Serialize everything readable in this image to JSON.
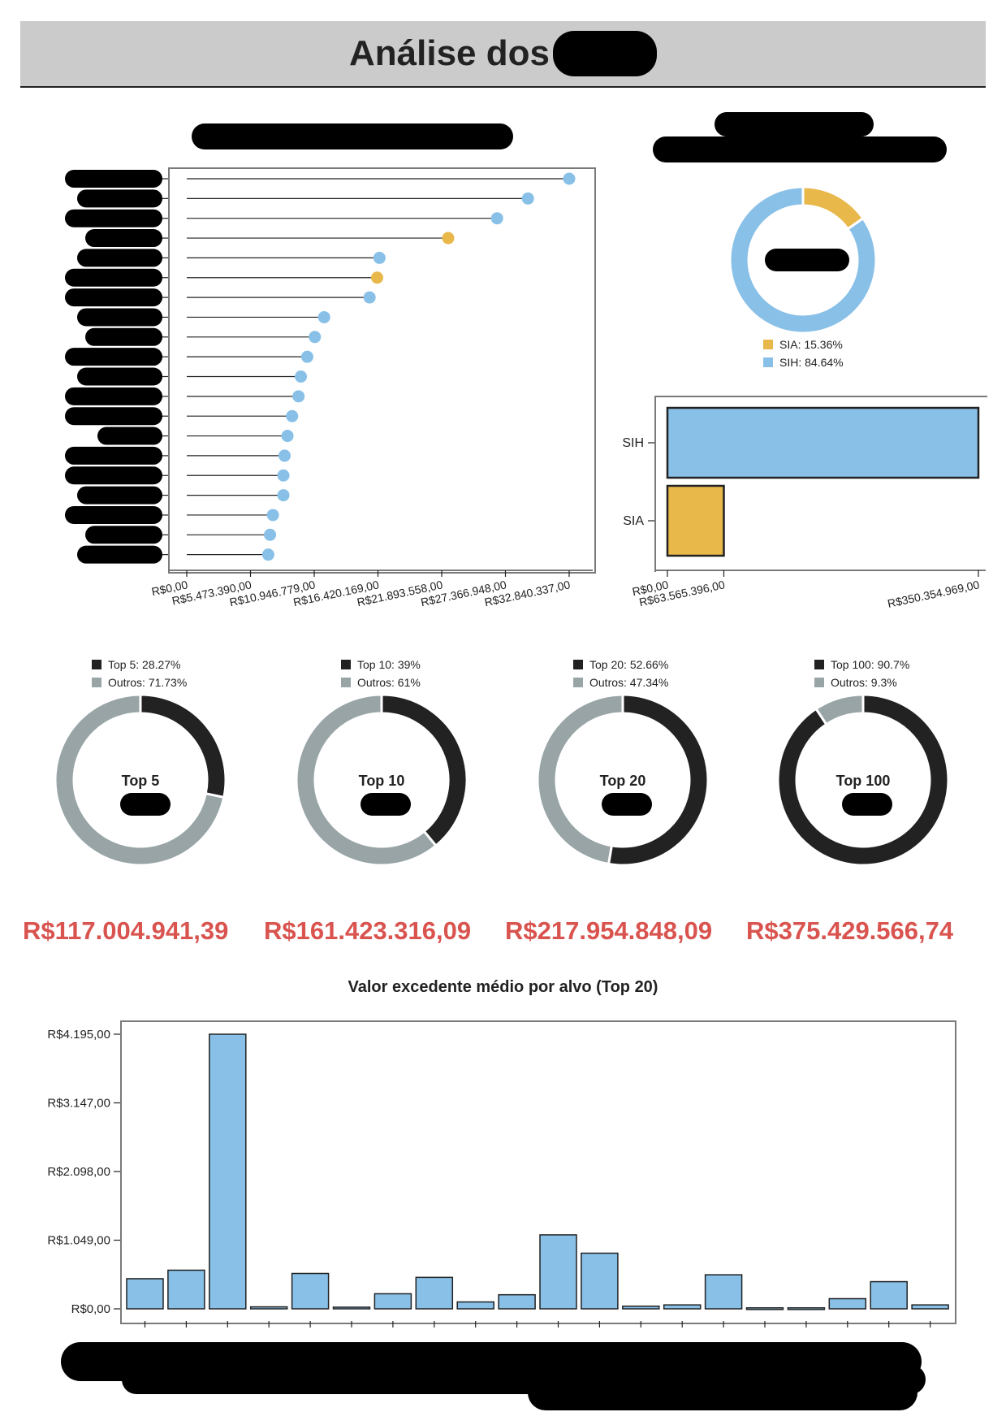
{
  "page": {
    "title": "Análise dos"
  },
  "chart_data": [
    {
      "type": "scatter",
      "subtype": "lollipop",
      "orientation": "horizontal",
      "values": [
        32840337,
        29300000,
        26650000,
        22450000,
        16550000,
        16350000,
        15700000,
        11800000,
        11000000,
        10350000,
        9800000,
        9600000,
        9050000,
        8650000,
        8400000,
        8300000,
        8300000,
        7400000,
        7150000,
        7000000
      ],
      "colors": [
        "#88c0e8",
        "#88c0e8",
        "#88c0e8",
        "#e8b84a",
        "#88c0e8",
        "#e8b84a",
        "#88c0e8",
        "#88c0e8",
        "#88c0e8",
        "#88c0e8",
        "#88c0e8",
        "#88c0e8",
        "#88c0e8",
        "#88c0e8",
        "#88c0e8",
        "#88c0e8",
        "#88c0e8",
        "#88c0e8",
        "#88c0e8",
        "#88c0e8"
      ],
      "xticks": [
        "R$0,00",
        "R$5.473.390,00",
        "R$10.946.779,00",
        "R$16.420.169,00",
        "R$21.893.558,00",
        "R$27.366.948,00",
        "R$32.840.337,00"
      ],
      "xlim": [
        0,
        32840337
      ],
      "grid": false
    },
    {
      "type": "pie",
      "subtype": "donut",
      "slices": [
        {
          "label": "SIA: 15.36%",
          "value": 15.36,
          "color": "#e8b84a"
        },
        {
          "label": "SIH: 84.64%",
          "value": 84.64,
          "color": "#88c0e8"
        }
      ],
      "legend": "bottom"
    },
    {
      "type": "bar",
      "orientation": "horizontal",
      "categories": [
        "SIH",
        "SIA"
      ],
      "values": [
        350354969,
        63565396
      ],
      "colors": [
        "#88c0e8",
        "#e8b84a"
      ],
      "xticks": [
        "R$0,00",
        "R$63.565.396,00",
        "R$350.354.969,00"
      ],
      "xlim": [
        0,
        350354969
      ]
    },
    {
      "type": "pie",
      "subtype": "donut",
      "center": "Top 5",
      "slices": [
        {
          "label": "Top 5: 28.27%",
          "value": 28.27,
          "color": "#222222"
        },
        {
          "label": "Outros: 71.73%",
          "value": 71.73,
          "color": "#98a4a6"
        }
      ],
      "total": "R$117.004.941,39",
      "legend": "top"
    },
    {
      "type": "pie",
      "subtype": "donut",
      "center": "Top 10",
      "slices": [
        {
          "label": "Top 10: 39%",
          "value": 39,
          "color": "#222222"
        },
        {
          "label": "Outros: 61%",
          "value": 61,
          "color": "#98a4a6"
        }
      ],
      "total": "R$161.423.316,09",
      "legend": "top"
    },
    {
      "type": "pie",
      "subtype": "donut",
      "center": "Top 20",
      "slices": [
        {
          "label": "Top 20: 52.66%",
          "value": 52.66,
          "color": "#222222"
        },
        {
          "label": "Outros: 47.34%",
          "value": 47.34,
          "color": "#98a4a6"
        }
      ],
      "total": "R$217.954.848,09",
      "legend": "top"
    },
    {
      "type": "pie",
      "subtype": "donut",
      "center": "Top 100",
      "slices": [
        {
          "label": "Top 100: 90.7%",
          "value": 90.7,
          "color": "#222222"
        },
        {
          "label": "Outros: 9.3%",
          "value": 9.3,
          "color": "#98a4a6"
        }
      ],
      "total": "R$375.429.566,74",
      "legend": "top"
    },
    {
      "type": "bar",
      "title": "Valor excedente médio por alvo (Top 20)",
      "values": [
        460,
        590,
        4195,
        30,
        540,
        25,
        230,
        480,
        105,
        215,
        1130,
        850,
        40,
        60,
        520,
        15,
        15,
        155,
        415,
        60
      ],
      "yticks": [
        "R$0,00",
        "R$1.049,00",
        "R$2.098,00",
        "R$3.147,00",
        "R$4.195,00"
      ],
      "ylim": [
        0,
        4195
      ],
      "color": "#88c0e8",
      "grid": false
    }
  ]
}
